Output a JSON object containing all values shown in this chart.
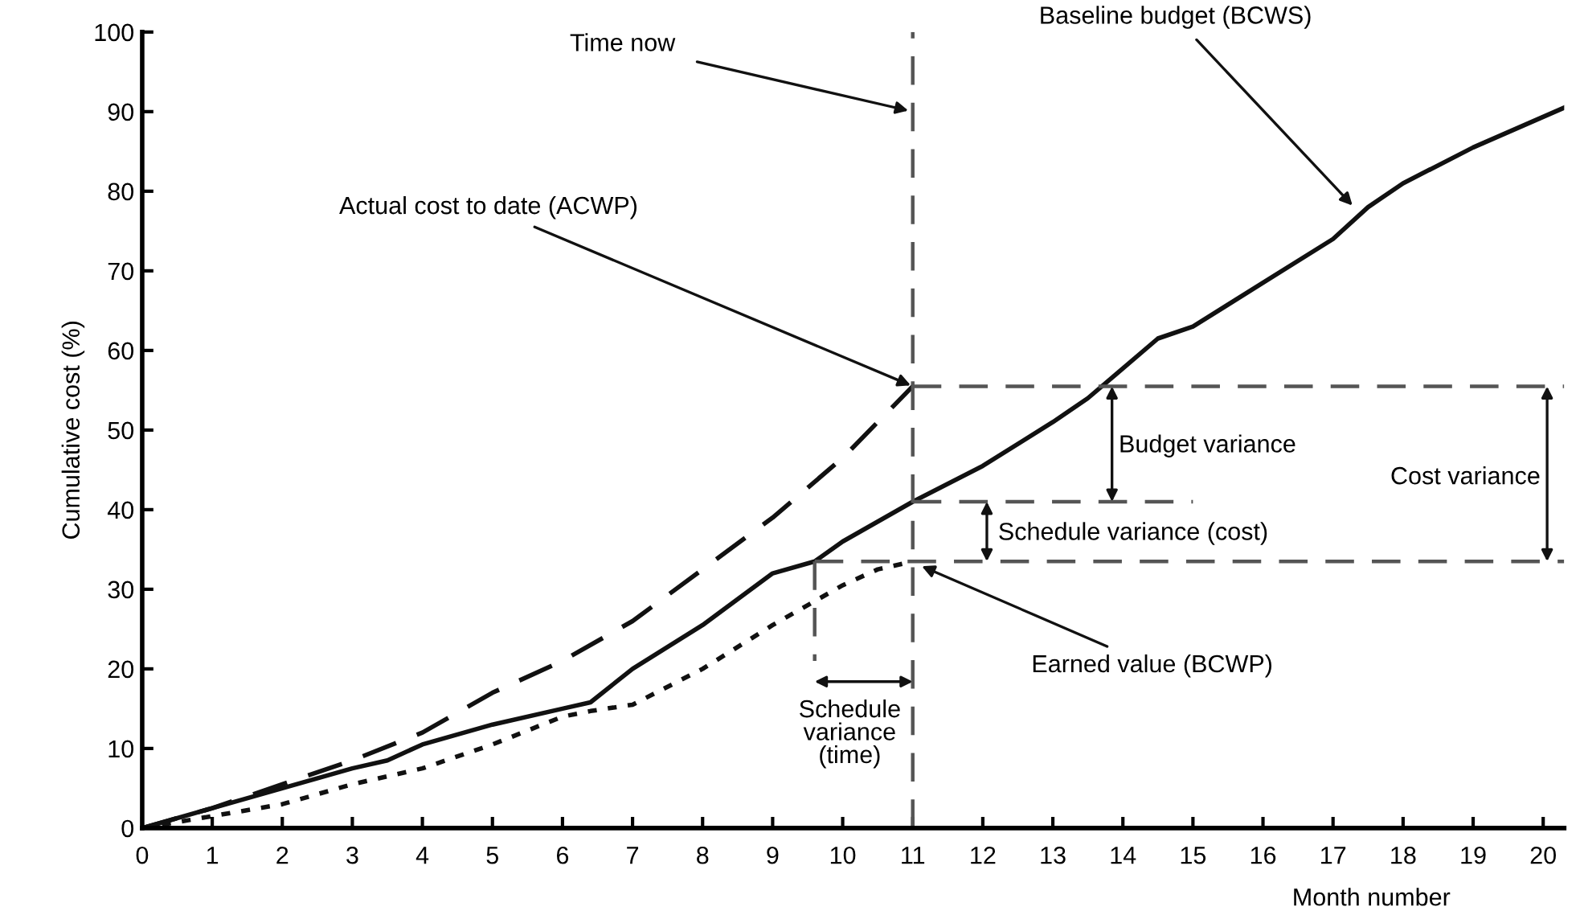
{
  "chart_data": {
    "type": "line",
    "xlabel": "Month number",
    "ylabel": "Cumulative cost (%)",
    "xlim": [
      0,
      20.3
    ],
    "ylim": [
      0,
      100
    ],
    "xticks": [
      0,
      1,
      2,
      3,
      4,
      5,
      6,
      7,
      8,
      9,
      10,
      11,
      12,
      13,
      14,
      15,
      16,
      17,
      18,
      19,
      20
    ],
    "yticks": [
      0,
      10,
      20,
      30,
      40,
      50,
      60,
      70,
      80,
      90,
      100
    ],
    "grid": false,
    "legend": false,
    "marker": "none",
    "series": [
      {
        "color": "#111111",
        "line_style": "solid",
        "x": [
          0,
          1,
          2,
          3,
          3.5,
          4,
          5,
          6,
          6.4,
          7,
          8,
          9,
          9.6,
          10,
          11,
          12,
          13,
          13.5,
          13.9,
          14.5,
          15,
          16,
          17,
          17.5,
          18,
          19,
          20.3
        ],
        "values": [
          0,
          2.5,
          5,
          7.5,
          8.5,
          10.5,
          13,
          15,
          15.8,
          20,
          25.5,
          32,
          33.5,
          36,
          41,
          45.5,
          51,
          54,
          57,
          61.5,
          63,
          68.5,
          74,
          78,
          81,
          85.5,
          90.5
        ]
      },
      {
        "color": "#111111",
        "line_style": "dashed",
        "x": [
          0,
          1,
          2,
          3,
          4,
          5,
          6,
          7,
          8,
          9,
          10,
          11
        ],
        "values": [
          0,
          2.5,
          5.5,
          8.5,
          12,
          17,
          21,
          26,
          32.5,
          39,
          46.5,
          55.5
        ]
      },
      {
        "color": "#111111",
        "line_style": "dotted",
        "x": [
          0,
          1,
          2,
          3,
          4,
          5,
          6,
          6.4,
          7,
          8,
          9,
          10,
          10.5,
          11
        ],
        "values": [
          0,
          1.5,
          3,
          5.5,
          7.5,
          10.5,
          14,
          14.7,
          15.5,
          20,
          25.5,
          30.5,
          32.5,
          33.5
        ]
      },
      {
        "color": "#555555",
        "line_style": "dashed",
        "x": [
          11,
          20.3
        ],
        "values": [
          55.5,
          55.5
        ]
      },
      {
        "color": "#555555",
        "line_style": "dashed",
        "x": [
          11,
          15
        ],
        "values": [
          41,
          41
        ]
      },
      {
        "color": "#555555",
        "line_style": "dashed",
        "x": [
          9.6,
          20.3
        ],
        "values": [
          33.5,
          33.5
        ]
      },
      {
        "color": "#555555",
        "line_style": "dashed",
        "x": [
          9.6,
          9.6
        ],
        "values": [
          33.5,
          21
        ]
      }
    ],
    "ref_lines": [
      {
        "axis": "x",
        "value": 11,
        "label": "Time now",
        "color": "#555555",
        "line_style": "dashed"
      }
    ],
    "annotations": [
      {
        "text": "Baseline budget (BCWS)",
        "x": 17.3,
        "y": 78
      },
      {
        "text": "Actual cost to date (ACWP)",
        "x": 11,
        "y": 55.5
      },
      {
        "text": "Earned value (BCWP)",
        "x": 11.1,
        "y": 33
      },
      "Budget variance",
      "Cost variance",
      "Schedule variance (cost)",
      "Schedule\nvariance\n(time)"
    ]
  }
}
